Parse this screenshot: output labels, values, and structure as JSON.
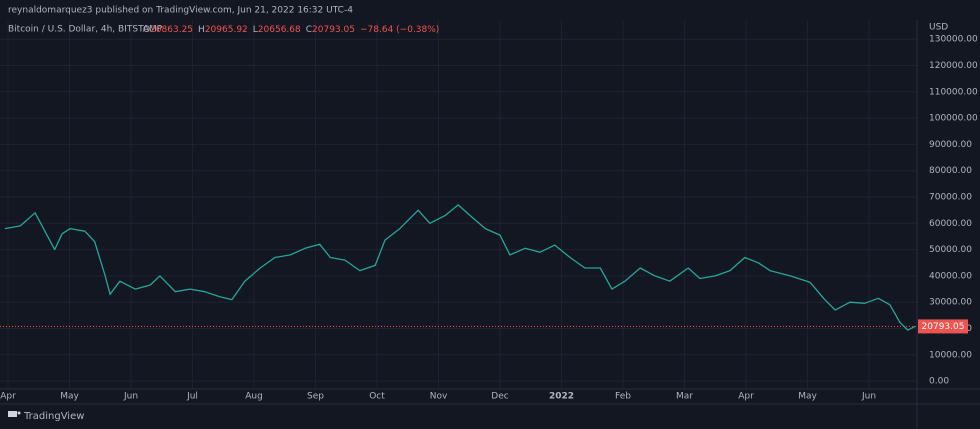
{
  "header": {
    "publisher": "reynaldomarquez3 published on TradingView.com, Jun 21, 2022 16:32 UTC-4"
  },
  "chart_data": {
    "type": "line",
    "symbol": "Bitcoin / U.S. Dollar, 4h, BITSTAMP",
    "ohlc": {
      "O": 20863.25,
      "H": 20965.92,
      "L": 20656.68,
      "C": 20793.05
    },
    "change": "−78.64 (−0.38%)",
    "y_axis_label": "USD",
    "last_price": 20793.05,
    "last_price_color": "#ef5350",
    "x": [
      -0.05,
      0.2,
      0.44,
      0.6,
      0.76,
      0.88,
      1.01,
      1.25,
      1.41,
      1.58,
      1.66,
      1.82,
      2.07,
      2.31,
      2.47,
      2.72,
      2.96,
      3.2,
      3.45,
      3.64,
      3.85,
      4.1,
      4.34,
      4.59,
      4.83,
      5.07,
      5.24,
      5.48,
      5.72,
      5.97,
      6.13,
      6.37,
      6.67,
      6.86,
      7.11,
      7.32,
      7.51,
      7.76,
      8.0,
      8.16,
      8.41,
      8.65,
      8.89,
      9.14,
      9.38,
      9.63,
      9.82,
      10.03,
      10.28,
      10.52,
      10.76,
      11.06,
      11.25,
      11.5,
      11.74,
      11.98,
      12.2,
      12.39,
      12.72,
      13.04,
      13.28,
      13.45,
      13.69,
      13.93,
      14.15,
      14.34,
      14.5,
      14.63,
      14.75
    ],
    "series": [
      {
        "color": "#26a69a",
        "values": [
          58000,
          59000,
          64000,
          57000,
          50000,
          56000,
          58000,
          57000,
          53000,
          40000,
          33000,
          38000,
          35000,
          36500,
          40000,
          34000,
          35000,
          34000,
          32000,
          31000,
          38000,
          43000,
          47000,
          48000,
          50500,
          52000,
          47000,
          46000,
          42000,
          44000,
          53600,
          58000,
          65000,
          60000,
          63000,
          67000,
          63000,
          58000,
          55500,
          48000,
          50500,
          49000,
          51700,
          47000,
          43000,
          43000,
          35000,
          38000,
          43000,
          40000,
          38000,
          43000,
          39000,
          40000,
          42000,
          47000,
          45000,
          42000,
          40000,
          37600,
          31000,
          27000,
          30000,
          29600,
          31500,
          29000,
          22400,
          19400,
          20800
        ]
      }
    ],
    "xlim": [
      -0.13,
      14.78
    ],
    "xticks": [
      {
        "value": 0,
        "label": "Apr"
      },
      {
        "value": 1,
        "label": "May"
      },
      {
        "value": 2,
        "label": "Jun"
      },
      {
        "value": 3,
        "label": "Jul"
      },
      {
        "value": 4,
        "label": "Aug"
      },
      {
        "value": 5,
        "label": "Sep"
      },
      {
        "value": 6,
        "label": "Oct"
      },
      {
        "value": 7,
        "label": "Nov"
      },
      {
        "value": 8,
        "label": "Dec"
      },
      {
        "value": 9,
        "label": "2022"
      },
      {
        "value": 10,
        "label": "Feb"
      },
      {
        "value": 11,
        "label": "Mar"
      },
      {
        "value": 12,
        "label": "Apr"
      },
      {
        "value": 13,
        "label": "May"
      },
      {
        "value": 14,
        "label": "Jun"
      }
    ],
    "ylim": [
      -3000,
      137300
    ],
    "yticks": [
      {
        "value": 0,
        "label": "0.00"
      },
      {
        "value": 10000,
        "label": "10000.00"
      },
      {
        "value": 20000,
        "label": "20000.00"
      },
      {
        "value": 30000,
        "label": "30000.00"
      },
      {
        "value": 40000,
        "label": "40000.00"
      },
      {
        "value": 50000,
        "label": "50000.00"
      },
      {
        "value": 60000,
        "label": "60000.00"
      },
      {
        "value": 70000,
        "label": "70000.00"
      },
      {
        "value": 80000,
        "label": "80000.00"
      },
      {
        "value": 90000,
        "label": "90000.00"
      },
      {
        "value": 100000,
        "label": "100000.00"
      },
      {
        "value": 110000,
        "label": "110000.00"
      },
      {
        "value": 120000,
        "label": "120000.00"
      },
      {
        "value": 130000,
        "label": "130000.00"
      }
    ],
    "grid": true
  },
  "footer": {
    "brand": "TradingView"
  }
}
